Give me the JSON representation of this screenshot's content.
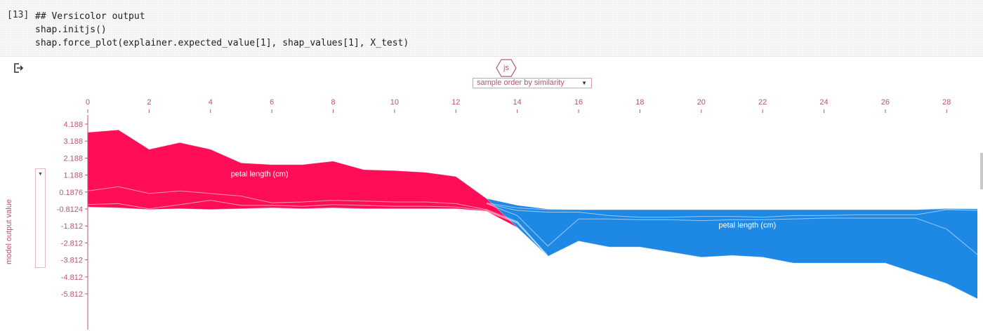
{
  "cell": {
    "prompt": "[13]",
    "code_lines": [
      "## Versicolor output",
      "shap.initjs()",
      "shap.force_plot(explainer.expected_value[1], shap_values[1], X_test)"
    ]
  },
  "output_icon": "output-arrow-icon",
  "js_badge": "js",
  "order_select": {
    "value": "sample order by similarity"
  },
  "y_axis_select": {
    "value": "model output value"
  },
  "colors": {
    "positive": "#ff0d57",
    "negative": "#1e88e5",
    "axis": "#b55673"
  },
  "chart_data": {
    "type": "area",
    "x_ticks": [
      0,
      2,
      4,
      6,
      8,
      10,
      12,
      14,
      16,
      18,
      20,
      22,
      24,
      26,
      28
    ],
    "y_ticks": [
      4.188,
      3.188,
      2.188,
      1.188,
      0.1876,
      -0.8124,
      -1.812,
      -2.812,
      -3.812,
      -4.812,
      -5.812
    ],
    "y_tick_labels": [
      "4.188",
      "3.188",
      "2.188",
      "1.188",
      "0.1876",
      "-0.8124",
      "-1.812",
      "-2.812",
      "-3.812",
      "-4.812",
      "-5.812"
    ],
    "xlim": [
      0,
      29
    ],
    "ylim": [
      -6.4,
      5
    ],
    "base_value": -0.8124,
    "annotations": [
      {
        "text": "petal length (cm)",
        "x": 5.6,
        "y": 1.1,
        "color": "positive"
      },
      {
        "text": "petal length (cm)",
        "x": 21.5,
        "y": -1.9,
        "color": "negative"
      }
    ],
    "x": [
      0,
      1,
      2,
      3,
      4,
      5,
      6,
      7,
      8,
      9,
      10,
      11,
      12,
      13,
      14,
      15,
      16,
      17,
      18,
      19,
      20,
      21,
      22,
      23,
      24,
      25,
      26,
      27,
      28,
      29
    ],
    "model_output": [
      3.7,
      3.85,
      2.7,
      3.1,
      2.7,
      1.9,
      1.8,
      1.8,
      2.0,
      1.5,
      1.45,
      1.35,
      1.1,
      -0.2,
      -1.9,
      -3.6,
      -2.7,
      -3.05,
      -3.05,
      -3.35,
      -3.65,
      -3.55,
      -3.65,
      -4.0,
      -4.0,
      -4.0,
      -4.0,
      -4.6,
      -5.2,
      -6.1
    ],
    "positive_series": [
      {
        "name": "petal length (cm)",
        "values": [
          0.25,
          0.5,
          0.1,
          0.25,
          0.1,
          -0.05,
          -0.45,
          -0.4,
          -0.3,
          -0.35,
          -0.4,
          -0.4,
          -0.5,
          -0.85,
          -1.55,
          -3.55,
          null,
          null,
          null,
          null,
          null,
          null,
          null,
          null,
          null,
          null,
          null,
          null,
          -5.1,
          -6.0
        ]
      },
      {
        "name": "",
        "values": [
          -0.55,
          -0.5,
          -0.8,
          -0.55,
          -0.3,
          -0.6,
          -0.6,
          -0.65,
          -0.55,
          -0.6,
          -0.65,
          -0.65,
          -0.7,
          -0.9,
          -1.6,
          -3.6,
          null,
          null,
          null,
          null,
          null,
          null,
          null,
          null,
          null,
          null,
          null,
          null,
          -5.15,
          -6.05
        ]
      },
      {
        "name": "",
        "values": [
          -0.7,
          -0.75,
          -0.85,
          -0.8,
          -0.85,
          -0.8,
          -0.75,
          -0.8,
          -0.75,
          -0.8,
          -0.8,
          -0.8,
          -0.8,
          -0.95,
          -1.65,
          -3.6,
          null,
          null,
          null,
          null,
          null,
          null,
          null,
          null,
          null,
          null,
          null,
          null,
          -5.2,
          -6.1
        ]
      }
    ],
    "negative_series": [
      {
        "name": "petal length (cm)",
        "values": [
          null,
          null,
          null,
          null,
          null,
          null,
          null,
          null,
          null,
          null,
          null,
          null,
          null,
          -0.5,
          -1.2,
          -3.0,
          -1.4,
          -1.4,
          -1.45,
          -1.45,
          -1.5,
          -1.45,
          -1.45,
          -1.4,
          -1.35,
          -1.35,
          -1.35,
          -1.35,
          -2.0,
          -3.5
        ]
      },
      {
        "name": "",
        "values": [
          null,
          null,
          null,
          null,
          null,
          null,
          null,
          null,
          null,
          null,
          null,
          null,
          null,
          -0.5,
          -0.9,
          -1.0,
          -1.0,
          -1.2,
          -1.3,
          -1.3,
          -1.25,
          -1.25,
          -1.3,
          -1.2,
          -1.2,
          -1.15,
          -1.15,
          -1.15,
          -0.85,
          -0.9
        ]
      },
      {
        "name": "",
        "values": [
          null,
          null,
          null,
          null,
          null,
          null,
          null,
          null,
          null,
          null,
          null,
          null,
          null,
          -0.45,
          -0.75,
          -0.85,
          -0.85,
          -0.85,
          -0.85,
          -0.85,
          -0.85,
          -0.85,
          -0.85,
          -0.85,
          -0.85,
          -0.85,
          -0.85,
          -0.85,
          -0.8,
          -0.8
        ]
      }
    ],
    "negative_top": [
      null,
      null,
      null,
      null,
      null,
      null,
      null,
      null,
      null,
      null,
      null,
      null,
      1.1,
      -0.2,
      -0.6,
      -0.82,
      -0.85,
      -0.85,
      -0.85,
      -0.85,
      -0.85,
      -0.85,
      -0.85,
      -0.85,
      -0.85,
      -0.85,
      -0.85,
      -0.85,
      -0.78,
      -0.8
    ]
  }
}
